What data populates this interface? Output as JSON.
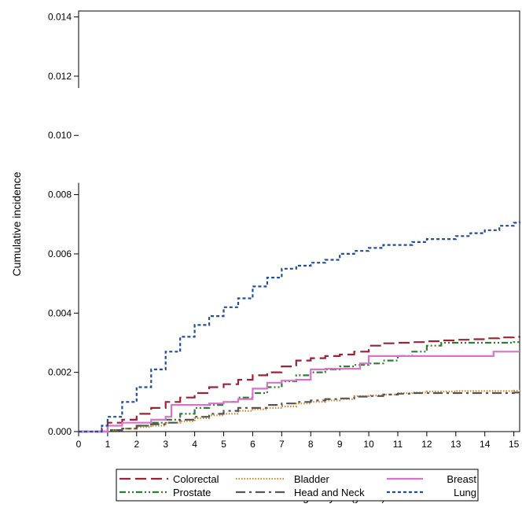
{
  "chart_data": {
    "type": "line",
    "title": "",
    "xlabel": "Time since starting dialysis (years)",
    "ylabel": "Cumulative incidence",
    "xlim": [
      0,
      15.2
    ],
    "ylim": [
      0,
      0.0142
    ],
    "axis_break_y": [
      0.0084,
      0.0116
    ],
    "x_ticks": [
      0,
      1,
      2,
      3,
      4,
      5,
      6,
      7,
      8,
      9,
      10,
      11,
      12,
      13,
      14,
      15
    ],
    "x_tick_labels": [
      "0",
      "1",
      "2",
      "3",
      "4",
      "5",
      "6",
      "7",
      "8",
      "9",
      "10",
      "11",
      "12",
      "13",
      "14",
      "15"
    ],
    "y_ticks": [
      0,
      0.002,
      0.004,
      0.006,
      0.008,
      0.01,
      0.012,
      0.014
    ],
    "y_tick_labels": [
      "0.000",
      "0.002",
      "0.004",
      "0.006",
      "0.008",
      "0.010",
      "0.012",
      "0.014"
    ],
    "grid": false,
    "legend_position": "bottom",
    "series": [
      {
        "name": "Colorectal",
        "color": "#9b2335",
        "dash": "long-dash",
        "x": [
          0,
          0.5,
          0.8,
          1,
          1.5,
          2,
          2.5,
          3,
          3.5,
          4,
          4.5,
          5,
          5.5,
          6,
          6.5,
          7,
          7.5,
          8,
          8.5,
          9,
          9.5,
          10,
          10.5,
          11,
          11.5,
          12,
          12.5,
          13,
          13.5,
          14,
          14.5,
          15,
          15.2
        ],
        "y": [
          0,
          0,
          0.0001,
          0.0003,
          0.0004,
          0.0006,
          0.0008,
          0.001,
          0.00115,
          0.0013,
          0.0015,
          0.0016,
          0.00175,
          0.0019,
          0.002,
          0.0022,
          0.0024,
          0.00248,
          0.00255,
          0.0026,
          0.0027,
          0.0029,
          0.00298,
          0.003,
          0.00302,
          0.00305,
          0.00308,
          0.0031,
          0.00312,
          0.00315,
          0.00318,
          0.0032,
          0.00322
        ]
      },
      {
        "name": "Prostate",
        "color": "#2e7d32",
        "dash": "dash-dot-dot",
        "x": [
          0,
          0.7,
          1,
          1.5,
          2,
          2.5,
          3,
          3.5,
          4,
          4.5,
          5,
          5.5,
          6,
          6.5,
          7,
          7.5,
          8,
          8.5,
          9,
          9.5,
          10,
          10.5,
          11,
          11.5,
          12,
          12.5,
          13,
          13.5,
          14,
          14.5,
          15,
          15.2
        ],
        "y": [
          0,
          0,
          5e-05,
          0.0001,
          0.0002,
          0.0003,
          0.0004,
          0.0006,
          0.0008,
          0.0009,
          0.001,
          0.00115,
          0.0013,
          0.0015,
          0.0017,
          0.0019,
          0.002,
          0.0021,
          0.0022,
          0.00225,
          0.0023,
          0.0024,
          0.00255,
          0.0027,
          0.0029,
          0.003,
          0.003,
          0.003,
          0.003,
          0.003,
          0.00302,
          0.00302
        ]
      },
      {
        "name": "Bladder",
        "color": "#d4882c",
        "dash": "dotted",
        "x": [
          0,
          0.7,
          1,
          1.5,
          2,
          2.5,
          3,
          3.5,
          4,
          4.5,
          5,
          5.5,
          6,
          6.5,
          7,
          7.5,
          8,
          8.5,
          9,
          9.5,
          10,
          10.5,
          11,
          11.5,
          12,
          12.5,
          13,
          13.5,
          14,
          14.5,
          15,
          15.2
        ],
        "y": [
          0,
          0,
          5e-05,
          0.0001,
          0.00015,
          0.0002,
          0.0003,
          0.00035,
          0.00045,
          0.00055,
          0.0006,
          0.0007,
          0.00075,
          0.0008,
          0.00085,
          0.00095,
          0.001,
          0.00105,
          0.0011,
          0.0012,
          0.00122,
          0.00125,
          0.0013,
          0.00132,
          0.00135,
          0.00135,
          0.00137,
          0.00137,
          0.00137,
          0.00137,
          0.00138,
          0.00138
        ]
      },
      {
        "name": "Head and Neck",
        "color": "#555555",
        "dash": "long-dash-dot",
        "x": [
          0,
          0.7,
          1,
          1.5,
          2,
          2.5,
          3,
          3.5,
          4,
          4.5,
          5,
          5.5,
          6,
          6.5,
          7,
          7.5,
          8,
          8.5,
          9,
          9.5,
          10,
          10.5,
          11,
          11.5,
          12,
          12.5,
          13,
          13.5,
          14,
          14.5,
          15,
          15.2
        ],
        "y": [
          0,
          0,
          5e-05,
          0.0001,
          0.0002,
          0.00025,
          0.0003,
          0.0004,
          0.0005,
          0.0006,
          0.0007,
          0.0008,
          0.0008,
          0.0009,
          0.00095,
          0.001,
          0.00105,
          0.0011,
          0.00112,
          0.00118,
          0.0012,
          0.00125,
          0.00128,
          0.0013,
          0.0013,
          0.0013,
          0.0013,
          0.0013,
          0.0013,
          0.0013,
          0.00132,
          0.00132
        ]
      },
      {
        "name": "Breast",
        "color": "#d873cc",
        "dash": "solid",
        "x": [
          0,
          0.7,
          1,
          1.5,
          2,
          2.5,
          3,
          3.2,
          3.5,
          4,
          4.5,
          5,
          5.5,
          5.8,
          6,
          6.5,
          7,
          7.5,
          8,
          8.5,
          9,
          9.5,
          9.7,
          10,
          10.5,
          11,
          11.5,
          12,
          12.5,
          13,
          13.5,
          14,
          14.3,
          14.5,
          15,
          15.2
        ],
        "y": [
          0,
          0,
          0.0002,
          0.0003,
          0.0003,
          0.0004,
          0.0005,
          0.0009,
          0.0009,
          0.0009,
          0.00095,
          0.001,
          0.0011,
          0.0011,
          0.00145,
          0.00165,
          0.00172,
          0.00175,
          0.0021,
          0.00212,
          0.00212,
          0.00212,
          0.0023,
          0.00255,
          0.00255,
          0.00255,
          0.00255,
          0.00255,
          0.00255,
          0.00255,
          0.00255,
          0.00255,
          0.0027,
          0.0027,
          0.0027,
          0.0027
        ]
      },
      {
        "name": "Lung",
        "color": "#1f4e9c",
        "dash": "short-dash",
        "x": [
          0,
          0.6,
          0.8,
          1,
          1.5,
          2,
          2.5,
          3,
          3.5,
          4,
          4.5,
          5,
          5.5,
          6,
          6.5,
          7,
          7.5,
          8,
          8.5,
          9,
          9.5,
          10,
          10.5,
          11,
          11.5,
          12,
          12.5,
          13,
          13.5,
          14,
          14.5,
          15,
          15.2
        ],
        "y": [
          0,
          0,
          0.0002,
          0.0005,
          0.001,
          0.0015,
          0.0021,
          0.0027,
          0.0032,
          0.0036,
          0.0039,
          0.0042,
          0.0045,
          0.0049,
          0.0052,
          0.0055,
          0.0056,
          0.0057,
          0.0058,
          0.006,
          0.0061,
          0.0062,
          0.0063,
          0.0063,
          0.0064,
          0.0065,
          0.0065,
          0.0066,
          0.0067,
          0.0068,
          0.00695,
          0.00705,
          0.0071
        ]
      }
    ],
    "legend_order": [
      "Colorectal",
      "Bladder",
      "Breast",
      "Prostate",
      "Head and Neck",
      "Lung"
    ]
  }
}
